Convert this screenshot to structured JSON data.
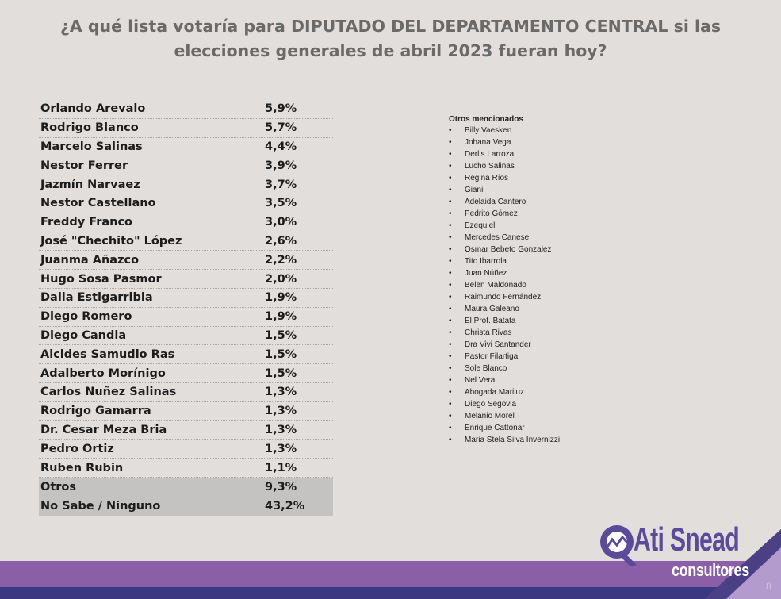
{
  "title": {
    "line1": "¿A qué lista votaría para DIPUTADO DEL DEPARTAMENTO CENTRAL si las",
    "line2": "elecciones generales de abril 2023 fueran hoy?"
  },
  "results": [
    {
      "name": "Orlando Arevalo",
      "pct": "5,9%"
    },
    {
      "name": "Rodrigo Blanco",
      "pct": "5,7%"
    },
    {
      "name": "Marcelo Salinas",
      "pct": "4,4%"
    },
    {
      "name": "Nestor Ferrer",
      "pct": "3,9%"
    },
    {
      "name": "Jazmín Narvaez",
      "pct": "3,7%"
    },
    {
      "name": "Nestor Castellano",
      "pct": "3,5%"
    },
    {
      "name": "Freddy Franco",
      "pct": "3,0%"
    },
    {
      "name": "José \"Chechito\" López",
      "pct": "2,6%"
    },
    {
      "name": "Juanma Añazco",
      "pct": "2,2%"
    },
    {
      "name": "Hugo Sosa Pasmor",
      "pct": "2,0%"
    },
    {
      "name": "Dalia Estigarribia",
      "pct": "1,9%"
    },
    {
      "name": "Diego Romero",
      "pct": "1,9%"
    },
    {
      "name": "Diego Candia",
      "pct": "1,5%"
    },
    {
      "name": "Alcides Samudio Ras",
      "pct": "1,5%"
    },
    {
      "name": "Adalberto Morínigo",
      "pct": "1,5%"
    },
    {
      "name": "Carlos Nuñez Salinas",
      "pct": "1,3%"
    },
    {
      "name": "Rodrigo Gamarra",
      "pct": "1,3%"
    },
    {
      "name": "Dr. Cesar Meza Bria",
      "pct": "1,3%"
    },
    {
      "name": "Pedro Ortiz",
      "pct": "1,3%"
    },
    {
      "name": "Ruben Rubin",
      "pct": "1,1%"
    },
    {
      "name": "Otros",
      "pct": "9,3%"
    },
    {
      "name": "No Sabe / Ninguno",
      "pct": "43,2%"
    }
  ],
  "others": {
    "heading": "Otros mencionados",
    "bullet": "•",
    "items": [
      "Billy Vaesken",
      "Johana Vega",
      "Derlis Larroza",
      "Lucho Salinas",
      "Regina Ríos",
      "Giani",
      "Adelaida Cantero",
      "Pedrito Gómez",
      "Ezequiel",
      "Mercedes Canese",
      "Osmar Bebeto Gonzalez",
      "Tito Ibarrola",
      "Juan Núñez",
      "Belen Maldonado",
      "Raimundo Fernández",
      "Maura Galeano",
      "El Prof. Batata",
      "Christa Rivas",
      "Dra Vivi Santander",
      "Pastor Filartiga",
      "Sole Blanco",
      "Nel Vera",
      "Abogada Mariluz",
      "Diego Segovia",
      "Melanio Morel",
      "Enrique Cattonar",
      "Maria Stela Silva Invernizzi"
    ]
  },
  "logo": {
    "brand": "Ati Snead",
    "sub": "consultores"
  },
  "page_number": "8",
  "colors": {
    "background": "#e1dedc",
    "title": "#6a6a6a",
    "shaded_row": "#c4c3c2",
    "band_purple": "#8a5fa8",
    "band_navy": "#3a3880",
    "logo_purple": "#5b4a9a"
  }
}
